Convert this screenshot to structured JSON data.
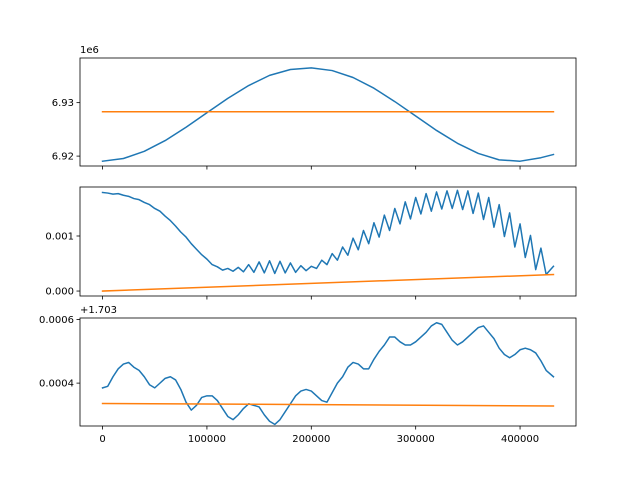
{
  "chart_data": [
    {
      "type": "line",
      "title": "",
      "xlabel": "",
      "ylabel": "",
      "offset_text": "1e6",
      "xlim": [
        -21600,
        453600
      ],
      "ylim": [
        6918150,
        6938350
      ],
      "show_xtick_labels": false,
      "xticks": [
        0,
        100000,
        200000,
        300000,
        400000
      ],
      "xtick_labels": [
        "0",
        "100000",
        "200000",
        "300000",
        "400000"
      ],
      "yticks": [
        6920000,
        6930000
      ],
      "ytick_labels": [
        "6.92",
        "6.93"
      ],
      "grid": false,
      "series": [
        {
          "color": "#1f77b4",
          "x": [
            0,
            20000,
            40000,
            60000,
            80000,
            100000,
            120000,
            140000,
            160000,
            180000,
            200000,
            220000,
            240000,
            260000,
            280000,
            300000,
            320000,
            340000,
            360000,
            380000,
            400000,
            420000,
            432000
          ],
          "y": [
            6919050,
            6919550,
            6920900,
            6922900,
            6925400,
            6928100,
            6930800,
            6933200,
            6935100,
            6936200,
            6936500,
            6936000,
            6934700,
            6932700,
            6930200,
            6927500,
            6924800,
            6922400,
            6920500,
            6919300,
            6919050,
            6919700,
            6920300
          ]
        },
        {
          "color": "#ff7f0e",
          "x": [
            0,
            432000
          ],
          "y": [
            6928300,
            6928300
          ]
        }
      ]
    },
    {
      "type": "line",
      "title": "",
      "xlabel": "",
      "ylabel": "",
      "offset_text": "",
      "xlim": [
        -21600,
        453600
      ],
      "ylim": [
        -9e-05,
        0.00189
      ],
      "show_xtick_labels": false,
      "xticks": [
        0,
        100000,
        200000,
        300000,
        400000
      ],
      "xtick_labels": [
        "0",
        "100000",
        "200000",
        "300000",
        "400000"
      ],
      "yticks": [
        0.0,
        0.001
      ],
      "ytick_labels": [
        "0.000",
        "0.001"
      ],
      "grid": false,
      "series": [
        {
          "color": "#1f77b4",
          "x": [
            0,
            5000,
            10000,
            15000,
            20000,
            25000,
            30000,
            35000,
            40000,
            45000,
            50000,
            55000,
            60000,
            65000,
            70000,
            75000,
            80000,
            85000,
            90000,
            95000,
            100000,
            105000,
            110000,
            115000,
            120000,
            125000,
            130000,
            135000,
            140000,
            145000,
            150000,
            155000,
            160000,
            165000,
            170000,
            175000,
            180000,
            185000,
            190000,
            195000,
            200000,
            205000,
            210000,
            215000,
            220000,
            225000,
            230000,
            235000,
            240000,
            245000,
            250000,
            255000,
            260000,
            265000,
            270000,
            275000,
            280000,
            285000,
            290000,
            295000,
            300000,
            305000,
            310000,
            315000,
            320000,
            325000,
            330000,
            335000,
            340000,
            345000,
            350000,
            355000,
            360000,
            365000,
            370000,
            375000,
            380000,
            385000,
            390000,
            395000,
            400000,
            405000,
            410000,
            415000,
            420000,
            425000,
            432000
          ],
          "y": [
            0.00179,
            0.00178,
            0.00176,
            0.00177,
            0.00174,
            0.00172,
            0.00168,
            0.00166,
            0.00161,
            0.00157,
            0.0015,
            0.00145,
            0.00136,
            0.00128,
            0.00118,
            0.00107,
            0.00098,
            0.00086,
            0.00076,
            0.00066,
            0.00058,
            0.00048,
            0.00044,
            0.00038,
            0.00041,
            0.00036,
            0.00043,
            0.00035,
            0.00048,
            0.00034,
            0.00053,
            0.00033,
            0.00055,
            0.00032,
            0.00054,
            0.00033,
            0.00051,
            0.00034,
            0.00046,
            0.00037,
            0.00045,
            0.00041,
            0.00056,
            0.00048,
            0.00068,
            0.00056,
            0.0008,
            0.00065,
            0.00096,
            0.00075,
            0.0011,
            0.00086,
            0.00124,
            0.00098,
            0.00138,
            0.0011,
            0.0015,
            0.00122,
            0.00162,
            0.00131,
            0.0017,
            0.0014,
            0.00177,
            0.00145,
            0.0018,
            0.00149,
            0.00182,
            0.0015,
            0.00183,
            0.00148,
            0.00182,
            0.00141,
            0.00178,
            0.0013,
            0.0017,
            0.00116,
            0.00157,
            0.00099,
            0.00142,
            0.0008,
            0.00122,
            0.00061,
            0.00101,
            0.00039,
            0.00078,
            0.0003,
            0.00045
          ]
        },
        {
          "color": "#ff7f0e",
          "x": [
            0,
            432000
          ],
          "y": [
            0.0,
            0.0003
          ]
        }
      ]
    },
    {
      "type": "line",
      "title": "",
      "xlabel": "",
      "ylabel": "",
      "offset_text": "+1.703",
      "xlim": [
        -21600,
        453600
      ],
      "ylim": [
        0.000265,
        0.000605
      ],
      "show_xtick_labels": true,
      "xticks": [
        0,
        100000,
        200000,
        300000,
        400000
      ],
      "xtick_labels": [
        "0",
        "100000",
        "200000",
        "300000",
        "400000"
      ],
      "yticks": [
        0.0004,
        0.0006
      ],
      "ytick_labels": [
        "0.0004",
        "0.0006"
      ],
      "grid": false,
      "series": [
        {
          "color": "#1f77b4",
          "x": [
            0,
            5000,
            10000,
            15000,
            20000,
            25000,
            30000,
            35000,
            40000,
            45000,
            50000,
            55000,
            60000,
            65000,
            70000,
            75000,
            80000,
            85000,
            90000,
            95000,
            100000,
            105000,
            110000,
            115000,
            120000,
            125000,
            130000,
            135000,
            140000,
            145000,
            150000,
            155000,
            160000,
            165000,
            170000,
            175000,
            180000,
            185000,
            190000,
            195000,
            200000,
            205000,
            210000,
            215000,
            220000,
            225000,
            230000,
            235000,
            240000,
            245000,
            250000,
            255000,
            260000,
            265000,
            270000,
            275000,
            280000,
            285000,
            290000,
            295000,
            300000,
            305000,
            310000,
            315000,
            320000,
            325000,
            330000,
            335000,
            340000,
            345000,
            350000,
            355000,
            360000,
            365000,
            370000,
            375000,
            380000,
            385000,
            390000,
            395000,
            400000,
            405000,
            410000,
            415000,
            420000,
            425000,
            432000
          ],
          "y": [
            0.000385,
            0.00039,
            0.00042,
            0.000445,
            0.00046,
            0.000465,
            0.00045,
            0.00044,
            0.00042,
            0.000395,
            0.000385,
            0.0004,
            0.000415,
            0.00042,
            0.00041,
            0.00038,
            0.00034,
            0.000315,
            0.00033,
            0.000355,
            0.00036,
            0.00036,
            0.000345,
            0.00032,
            0.000295,
            0.000285,
            0.0003,
            0.00032,
            0.000335,
            0.00033,
            0.000325,
            0.0003,
            0.00028,
            0.00027,
            0.000285,
            0.00031,
            0.000335,
            0.00036,
            0.000375,
            0.00038,
            0.000375,
            0.00036,
            0.000345,
            0.00034,
            0.00037,
            0.0004,
            0.00042,
            0.00045,
            0.000465,
            0.00046,
            0.000445,
            0.000445,
            0.000475,
            0.0005,
            0.00052,
            0.000545,
            0.000545,
            0.00053,
            0.00052,
            0.00052,
            0.00053,
            0.000545,
            0.00056,
            0.00058,
            0.00059,
            0.000585,
            0.00056,
            0.000535,
            0.00052,
            0.00053,
            0.000545,
            0.00056,
            0.000575,
            0.00058,
            0.00056,
            0.00054,
            0.00051,
            0.00049,
            0.00048,
            0.00049,
            0.000505,
            0.00051,
            0.000505,
            0.000495,
            0.00047,
            0.00044,
            0.00042
          ]
        },
        {
          "color": "#ff7f0e",
          "x": [
            0,
            432000
          ],
          "y": [
            0.000336,
            0.000328
          ]
        }
      ]
    }
  ]
}
